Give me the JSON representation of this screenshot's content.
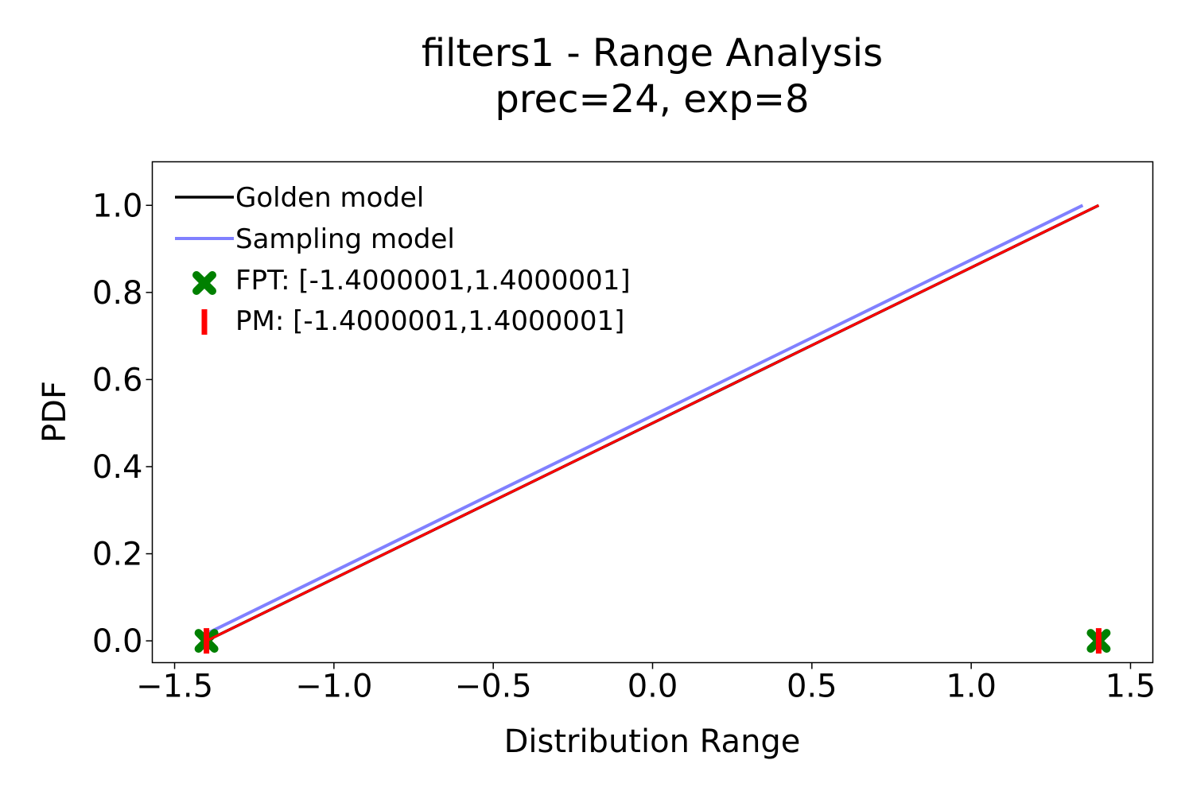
{
  "chart_data": {
    "type": "line",
    "title": "filters1 - Range Analysis",
    "subtitle": "prec=24, exp=8",
    "xlabel": "Distribution Range",
    "ylabel": "PDF",
    "xlim": [
      -1.57,
      1.57
    ],
    "ylim": [
      -0.05,
      1.1
    ],
    "xticks": [
      -1.5,
      -1.0,
      -0.5,
      0.0,
      0.5,
      1.0,
      1.5
    ],
    "xtick_labels": [
      "−1.5",
      "−1.0",
      "−0.5",
      "0.0",
      "0.5",
      "1.0",
      "1.5"
    ],
    "yticks": [
      0.0,
      0.2,
      0.4,
      0.6,
      0.8,
      1.0
    ],
    "ytick_labels": [
      "0.0",
      "0.2",
      "0.4",
      "0.6",
      "0.8",
      "1.0"
    ],
    "grid": false,
    "legend_position": "top-left",
    "series": [
      {
        "name": "Golden model",
        "kind": "line",
        "color": "#000000",
        "points": [
          [
            -1.4000001,
            0.0
          ],
          [
            1.4000001,
            1.0
          ]
        ]
      },
      {
        "name": "Sampling model",
        "kind": "line",
        "color": "#8080ff",
        "points": [
          [
            -1.39,
            0.02
          ],
          [
            1.35,
            1.0
          ]
        ]
      },
      {
        "name": "FPT: [-1.4000001,1.4000001]",
        "kind": "marker-x",
        "color": "#008000",
        "points": [
          [
            -1.4000001,
            0.0
          ],
          [
            1.4000001,
            0.0
          ]
        ]
      },
      {
        "name": "PM: [-1.4000001,1.4000001]",
        "kind": "marker-vline",
        "color": "#ff0000",
        "points": [
          [
            -1.4000001,
            0.0
          ],
          [
            1.4000001,
            0.0
          ]
        ],
        "line_points": [
          [
            -1.4000001,
            0.0
          ],
          [
            1.4000001,
            1.0
          ]
        ]
      }
    ]
  }
}
